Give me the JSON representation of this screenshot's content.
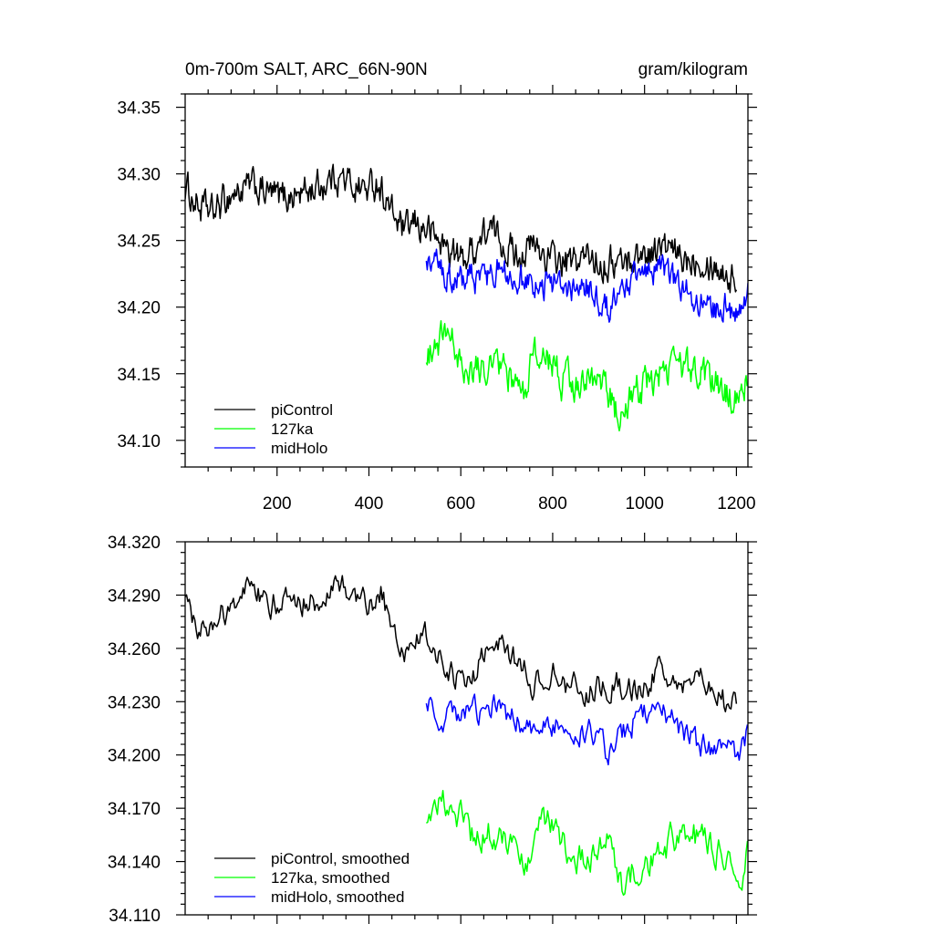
{
  "chart_data": [
    {
      "type": "line",
      "title": "0m-700m SALT, ARC_66N-90N",
      "units": "gram/kilogram",
      "xlim": [
        0,
        1225
      ],
      "ylim": [
        34.08,
        34.36
      ],
      "xticks": [
        200,
        400,
        600,
        800,
        1000,
        1200
      ],
      "xtick_labels": [
        "200",
        "400",
        "600",
        "800",
        "1000",
        "1200"
      ],
      "yticks": [
        34.1,
        34.15,
        34.2,
        34.25,
        34.3,
        34.35
      ],
      "ytick_labels": [
        "34.10",
        "34.15",
        "34.20",
        "34.25",
        "34.30",
        "34.35"
      ],
      "legend_position": "bottom-left",
      "series": [
        {
          "name": "piControl",
          "color": "#000000",
          "x_start": 0,
          "x_end": 1200,
          "anchors": [
            [
              0,
              34.29
            ],
            [
              30,
              34.275
            ],
            [
              60,
              34.27
            ],
            [
              100,
              34.285
            ],
            [
              150,
              34.29
            ],
            [
              200,
              34.282
            ],
            [
              250,
              34.285
            ],
            [
              300,
              34.292
            ],
            [
              330,
              34.3
            ],
            [
              350,
              34.294
            ],
            [
              400,
              34.288
            ],
            [
              420,
              34.295
            ],
            [
              450,
              34.27
            ],
            [
              480,
              34.255
            ],
            [
              500,
              34.262
            ],
            [
              530,
              34.258
            ],
            [
              550,
              34.25
            ],
            [
              580,
              34.242
            ],
            [
              600,
              34.235
            ],
            [
              630,
              34.245
            ],
            [
              660,
              34.258
            ],
            [
              690,
              34.25
            ],
            [
              720,
              34.24
            ],
            [
              760,
              34.245
            ],
            [
              800,
              34.235
            ],
            [
              840,
              34.232
            ],
            [
              880,
              34.238
            ],
            [
              920,
              34.233
            ],
            [
              960,
              34.235
            ],
            [
              1000,
              34.24
            ],
            [
              1040,
              34.245
            ],
            [
              1080,
              34.235
            ],
            [
              1120,
              34.24
            ],
            [
              1160,
              34.23
            ],
            [
              1200,
              34.22
            ]
          ],
          "noise": 0.0105
        },
        {
          "name": "127ka",
          "color": "#00ff00",
          "x_start": 525,
          "x_end": 1225,
          "anchors": [
            [
              525,
              34.16
            ],
            [
              550,
              34.175
            ],
            [
              580,
              34.172
            ],
            [
              600,
              34.165
            ],
            [
              620,
              34.15
            ],
            [
              660,
              34.16
            ],
            [
              700,
              34.15
            ],
            [
              740,
              34.135
            ],
            [
              760,
              34.168
            ],
            [
              790,
              34.16
            ],
            [
              820,
              34.145
            ],
            [
              860,
              34.142
            ],
            [
              900,
              34.15
            ],
            [
              940,
              34.12
            ],
            [
              970,
              34.135
            ],
            [
              1000,
              34.14
            ],
            [
              1040,
              34.152
            ],
            [
              1080,
              34.155
            ],
            [
              1120,
              34.15
            ],
            [
              1160,
              34.14
            ],
            [
              1200,
              34.13
            ],
            [
              1225,
              34.145
            ]
          ],
          "noise": 0.0105
        },
        {
          "name": "midHolo",
          "color": "#0000ff",
          "x_start": 525,
          "x_end": 1225,
          "anchors": [
            [
              525,
              34.24
            ],
            [
              560,
              34.225
            ],
            [
              600,
              34.22
            ],
            [
              640,
              34.222
            ],
            [
              680,
              34.228
            ],
            [
              720,
              34.222
            ],
            [
              760,
              34.212
            ],
            [
              800,
              34.218
            ],
            [
              840,
              34.21
            ],
            [
              880,
              34.215
            ],
            [
              920,
              34.198
            ],
            [
              960,
              34.215
            ],
            [
              1000,
              34.225
            ],
            [
              1040,
              34.228
            ],
            [
              1080,
              34.215
            ],
            [
              1120,
              34.205
            ],
            [
              1160,
              34.2
            ],
            [
              1200,
              34.198
            ],
            [
              1225,
              34.21
            ]
          ],
          "noise": 0.0095
        }
      ]
    },
    {
      "type": "line",
      "xlim": [
        0,
        1225
      ],
      "ylim": [
        34.11,
        34.32
      ],
      "xticks": [
        200,
        400,
        600,
        800,
        1000,
        1200
      ],
      "yticks": [
        34.11,
        34.14,
        34.17,
        34.2,
        34.23,
        34.26,
        34.29,
        34.32
      ],
      "ytick_labels": [
        "34.110",
        "34.140",
        "34.170",
        "34.200",
        "34.230",
        "34.260",
        "34.290",
        "34.320"
      ],
      "legend_position": "bottom-left",
      "series": [
        {
          "name": "piControl, smoothed",
          "color": "#000000",
          "x_start": 0,
          "x_end": 1200,
          "anchors": [
            [
              0,
              34.285
            ],
            [
              40,
              34.27
            ],
            [
              80,
              34.28
            ],
            [
              120,
              34.292
            ],
            [
              160,
              34.29
            ],
            [
              200,
              34.285
            ],
            [
              250,
              34.287
            ],
            [
              300,
              34.288
            ],
            [
              330,
              34.298
            ],
            [
              360,
              34.288
            ],
            [
              400,
              34.285
            ],
            [
              430,
              34.292
            ],
            [
              450,
              34.268
            ],
            [
              480,
              34.258
            ],
            [
              520,
              34.268
            ],
            [
              560,
              34.25
            ],
            [
              600,
              34.24
            ],
            [
              640,
              34.25
            ],
            [
              680,
              34.262
            ],
            [
              720,
              34.252
            ],
            [
              760,
              34.24
            ],
            [
              800,
              34.245
            ],
            [
              840,
              34.238
            ],
            [
              880,
              34.236
            ],
            [
              920,
              34.24
            ],
            [
              960,
              34.24
            ],
            [
              1000,
              34.238
            ],
            [
              1040,
              34.248
            ],
            [
              1080,
              34.238
            ],
            [
              1120,
              34.242
            ],
            [
              1160,
              34.232
            ],
            [
              1200,
              34.225
            ]
          ],
          "noise": 0.0065
        },
        {
          "name": "127ka, smoothed",
          "color": "#00ff00",
          "x_start": 525,
          "x_end": 1225,
          "anchors": [
            [
              525,
              34.165
            ],
            [
              550,
              34.175
            ],
            [
              580,
              34.17
            ],
            [
              600,
              34.165
            ],
            [
              630,
              34.15
            ],
            [
              660,
              34.158
            ],
            [
              700,
              34.15
            ],
            [
              740,
              34.138
            ],
            [
              770,
              34.165
            ],
            [
              800,
              34.158
            ],
            [
              840,
              34.145
            ],
            [
              880,
              34.14
            ],
            [
              920,
              34.148
            ],
            [
              950,
              34.125
            ],
            [
              980,
              34.135
            ],
            [
              1020,
              34.143
            ],
            [
              1060,
              34.152
            ],
            [
              1100,
              34.155
            ],
            [
              1140,
              34.15
            ],
            [
              1180,
              34.14
            ],
            [
              1210,
              34.135
            ],
            [
              1225,
              34.145
            ]
          ],
          "noise": 0.0075
        },
        {
          "name": "midHolo, smoothed",
          "color": "#0000ff",
          "x_start": 525,
          "x_end": 1225,
          "anchors": [
            [
              525,
              34.235
            ],
            [
              560,
              34.222
            ],
            [
              600,
              34.22
            ],
            [
              640,
              34.225
            ],
            [
              680,
              34.228
            ],
            [
              720,
              34.22
            ],
            [
              760,
              34.21
            ],
            [
              800,
              34.218
            ],
            [
              840,
              34.212
            ],
            [
              880,
              34.215
            ],
            [
              920,
              34.2
            ],
            [
              960,
              34.215
            ],
            [
              1000,
              34.225
            ],
            [
              1040,
              34.226
            ],
            [
              1080,
              34.215
            ],
            [
              1120,
              34.205
            ],
            [
              1160,
              34.202
            ],
            [
              1200,
              34.2
            ],
            [
              1225,
              34.212
            ]
          ],
          "noise": 0.0062
        }
      ]
    }
  ]
}
